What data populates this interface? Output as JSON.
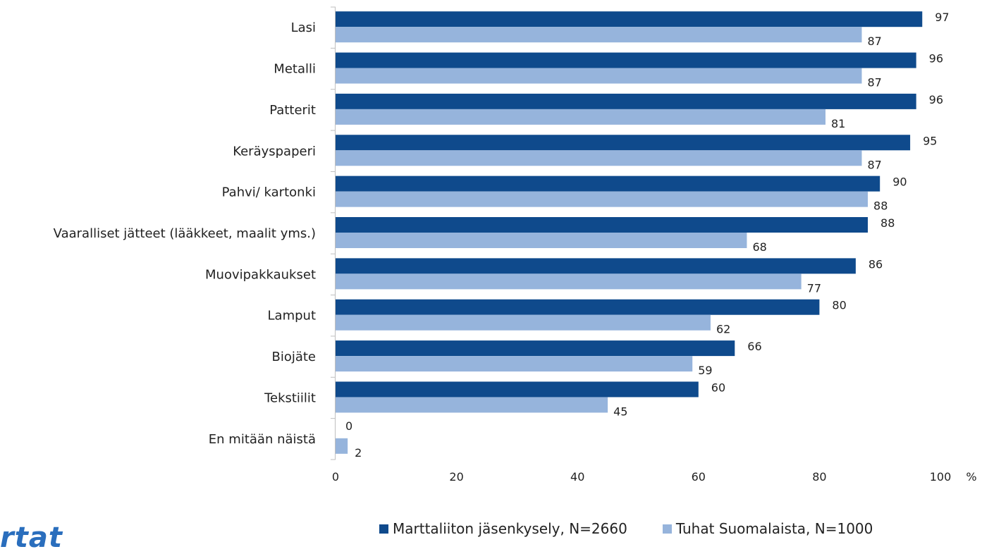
{
  "chart_data": {
    "type": "bar",
    "orientation": "horizontal",
    "categories": [
      "Lasi",
      "Metalli",
      "Patterit",
      "Keräyspaperi",
      "Pahvi/ kartonki",
      "Vaaralliset jätteet (lääkkeet, maalit yms.)",
      "Muovipakkaukset",
      "Lamput",
      "Biojäte",
      "Tekstiilit",
      "En mitään näistä"
    ],
    "series": [
      {
        "name": "Marttaliiton jäsenkysely, N=2660",
        "color": "#0f4a8c",
        "values": [
          97,
          96,
          96,
          95,
          90,
          88,
          86,
          80,
          66,
          60,
          0
        ]
      },
      {
        "name": "Tuhat Suomalaista, N=1000",
        "color": "#96b4dc",
        "values": [
          87,
          87,
          81,
          87,
          88,
          68,
          77,
          62,
          59,
          45,
          2
        ]
      }
    ],
    "xticks": [
      "0",
      "20",
      "40",
      "60",
      "80",
      "100"
    ],
    "xlim": [
      0,
      100
    ],
    "unit": "%",
    "legend_position": "bottom"
  },
  "logo_text": "rtat"
}
